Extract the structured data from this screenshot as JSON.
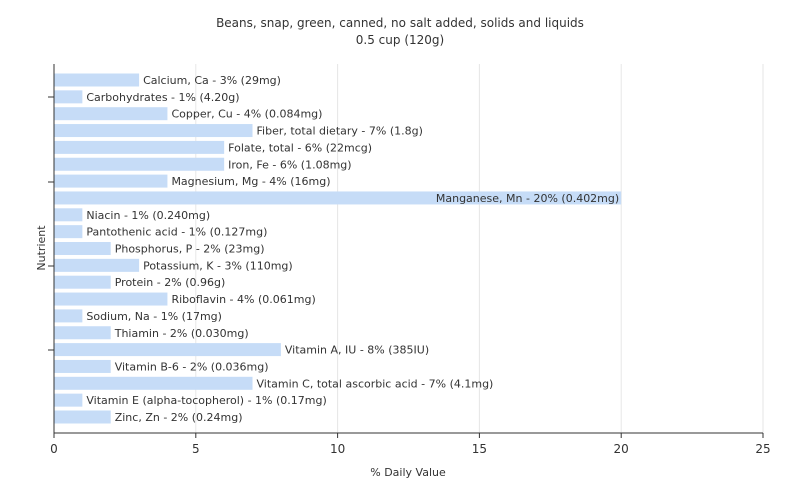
{
  "chart_data": {
    "type": "bar",
    "orientation": "horizontal",
    "title": "Beans, snap, green, canned, no salt added, solids and liquids",
    "subtitle": "0.5 cup (120g)",
    "xlabel": "% Daily Value",
    "ylabel": "Nutrient",
    "xlim": [
      0,
      25
    ],
    "xticks": [
      0,
      5,
      10,
      15,
      20,
      25
    ],
    "grid": true,
    "bar_color": "#c6dcf7",
    "categories": [
      "Calcium, Ca",
      "Carbohydrates",
      "Copper, Cu",
      "Fiber, total dietary",
      "Folate, total",
      "Iron, Fe",
      "Magnesium, Mg",
      "Manganese, Mn",
      "Niacin",
      "Pantothenic acid",
      "Phosphorus, P",
      "Potassium, K",
      "Protein",
      "Riboflavin",
      "Sodium, Na",
      "Thiamin",
      "Vitamin A, IU",
      "Vitamin B-6",
      "Vitamin C, total ascorbic acid",
      "Vitamin E (alpha-tocopherol)",
      "Zinc, Zn"
    ],
    "values": [
      3,
      1,
      4,
      7,
      6,
      6,
      4,
      20,
      1,
      1,
      2,
      3,
      2,
      4,
      1,
      2,
      8,
      2,
      7,
      1,
      2
    ],
    "labels": [
      "Calcium, Ca - 3% (29mg)",
      "Carbohydrates - 1% (4.20g)",
      "Copper, Cu - 4% (0.084mg)",
      "Fiber, total dietary - 7% (1.8g)",
      "Folate, total - 6% (22mcg)",
      "Iron, Fe - 6% (1.08mg)",
      "Magnesium, Mg - 4% (16mg)",
      "Manganese, Mn - 20% (0.402mg)",
      "Niacin - 1% (0.240mg)",
      "Pantothenic acid - 1% (0.127mg)",
      "Phosphorus, P - 2% (23mg)",
      "Potassium, K - 3% (110mg)",
      "Protein - 2% (0.96g)",
      "Riboflavin - 4% (0.061mg)",
      "Sodium, Na - 1% (17mg)",
      "Thiamin - 2% (0.030mg)",
      "Vitamin A, IU - 8% (385IU)",
      "Vitamin B-6 - 2% (0.036mg)",
      "Vitamin C, total ascorbic acid - 7% (4.1mg)",
      "Vitamin E (alpha-tocopherol) - 1% (0.17mg)",
      "Zinc, Zn - 2% (0.24mg)"
    ]
  }
}
